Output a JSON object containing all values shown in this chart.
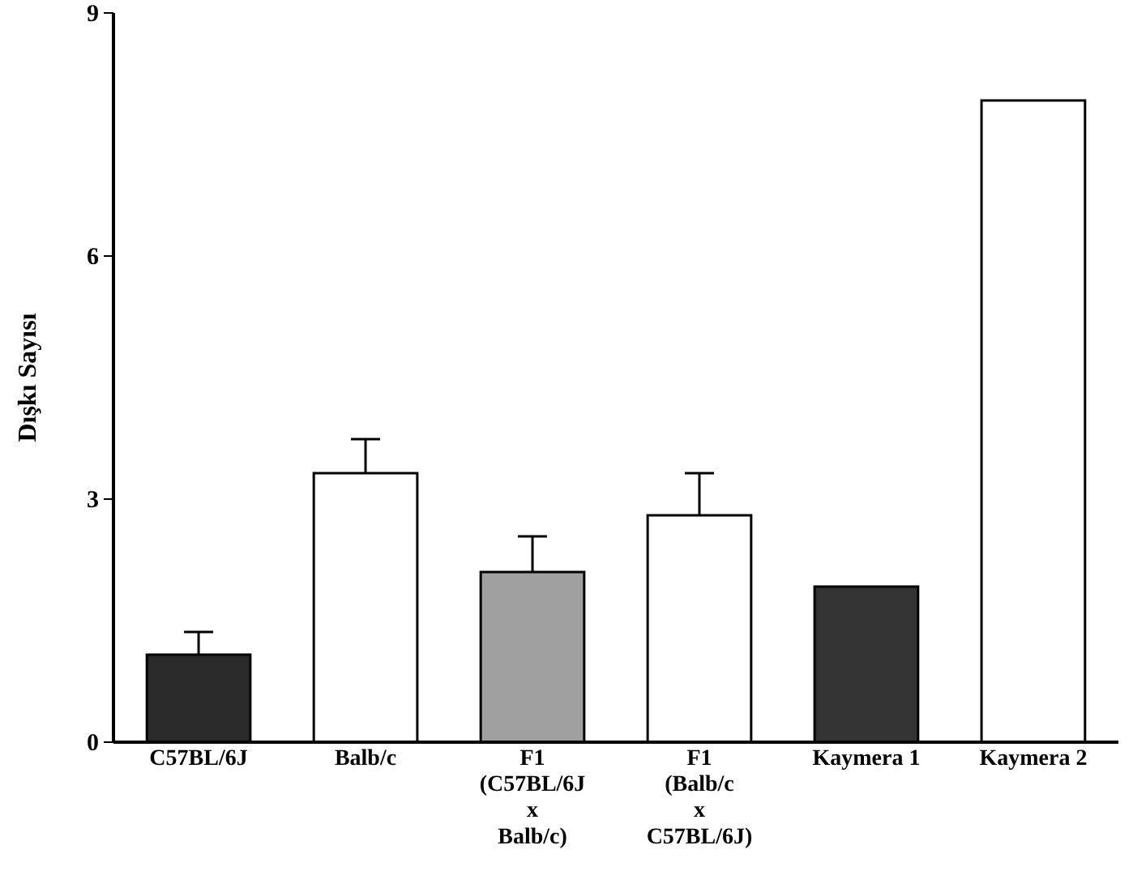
{
  "chart_data": {
    "type": "bar",
    "ylabel": "Dışkı Sayısı",
    "categories": [
      "C57BL/6J",
      "Balb/c",
      "F1\n(C57BL/6J\nx\nBalb/c)",
      "F1\n(Balb/c\nx\nC57BL/6J)",
      "Kaymera 1",
      "Kaymera 2"
    ],
    "values": [
      1.08,
      3.32,
      2.1,
      2.8,
      1.92,
      7.92
    ],
    "errors": [
      [
        1.08,
        1.36
      ],
      [
        3.32,
        3.74
      ],
      [
        2.1,
        2.54
      ],
      [
        2.8,
        3.32
      ],
      null,
      null
    ],
    "colors": [
      "#2a2a2a",
      "#ffffff",
      "#a0a0a0",
      "#ffffff",
      "#333333",
      "#ffffff"
    ],
    "ylim": [
      0,
      9
    ],
    "yticks": [
      0,
      3,
      6,
      9
    ],
    "grid": false
  }
}
